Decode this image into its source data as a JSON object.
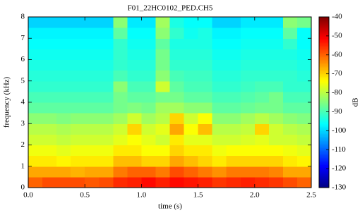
{
  "chart_data": {
    "type": "heatmap",
    "title": "F01_22HC0102_PED.CH5",
    "xlabel": "time (s)",
    "ylabel": "frequency (kHz)",
    "colorbar_label": "dB",
    "colormap": "jet",
    "x": [
      0.0625,
      0.1875,
      0.3125,
      0.4375,
      0.5625,
      0.6875,
      0.8125,
      0.9375,
      1.0625,
      1.1875,
      1.3125,
      1.4375,
      1.5625,
      1.6875,
      1.8125,
      1.9375,
      2.0625,
      2.1875,
      2.3125,
      2.4375
    ],
    "y": [
      0.25,
      0.75,
      1.25,
      1.75,
      2.25,
      2.75,
      3.25,
      3.75,
      4.25,
      4.75,
      5.25,
      5.75,
      6.25,
      6.75,
      7.25,
      7.75
    ],
    "z": [
      [
        -60,
        -58,
        -58,
        -58,
        -59,
        -58,
        -55,
        -54,
        -52,
        -54,
        -52,
        -53,
        -54,
        -56,
        -55,
        -54,
        -55,
        -56,
        -58,
        -60
      ],
      [
        -66,
        -66,
        -66,
        -67,
        -66,
        -66,
        -62,
        -60,
        -60,
        -62,
        -58,
        -60,
        -62,
        -64,
        -62,
        -62,
        -62,
        -63,
        -66,
        -66
      ],
      [
        -72,
        -72,
        -73,
        -72,
        -72,
        -72,
        -68,
        -68,
        -70,
        -70,
        -66,
        -68,
        -70,
        -72,
        -70,
        -70,
        -70,
        -70,
        -72,
        -73
      ],
      [
        -75,
        -75,
        -76,
        -75,
        -75,
        -75,
        -72,
        -72,
        -74,
        -74,
        -70,
        -72,
        -72,
        -75,
        -74,
        -74,
        -74,
        -74,
        -75,
        -76
      ],
      [
        -78,
        -78,
        -79,
        -78,
        -78,
        -78,
        -76,
        -74,
        -76,
        -78,
        -72,
        -76,
        -76,
        -78,
        -78,
        -77,
        -76,
        -78,
        -78,
        -79
      ],
      [
        -80,
        -80,
        -81,
        -80,
        -80,
        -80,
        -78,
        -70,
        -78,
        -76,
        -66,
        -74,
        -68,
        -80,
        -80,
        -79,
        -70,
        -78,
        -80,
        -81
      ],
      [
        -84,
        -84,
        -85,
        -84,
        -84,
        -84,
        -82,
        -78,
        -82,
        -80,
        -70,
        -78,
        -74,
        -84,
        -84,
        -82,
        -80,
        -82,
        -84,
        -85
      ],
      [
        -88,
        -88,
        -88,
        -88,
        -88,
        -88,
        -86,
        -85,
        -86,
        -82,
        -82,
        -84,
        -84,
        -88,
        -88,
        -87,
        -86,
        -86,
        -88,
        -88
      ],
      [
        -90,
        -90,
        -90,
        -90,
        -90,
        -90,
        -86,
        -88,
        -88,
        -86,
        -86,
        -88,
        -88,
        -90,
        -90,
        -89,
        -88,
        -86,
        -90,
        -90
      ],
      [
        -92,
        -92,
        -92,
        -92,
        -92,
        -92,
        -84,
        -90,
        -90,
        -78,
        -88,
        -90,
        -90,
        -92,
        -92,
        -91,
        -90,
        -90,
        -92,
        -92
      ],
      [
        -93,
        -93,
        -93,
        -93,
        -93,
        -93,
        -90,
        -92,
        -92,
        -84,
        -90,
        -91,
        -91,
        -93,
        -93,
        -92,
        -92,
        -92,
        -92,
        -93
      ],
      [
        -94,
        -94,
        -94,
        -94,
        -94,
        -94,
        -92,
        -93,
        -93,
        -86,
        -92,
        -92,
        -92,
        -94,
        -94,
        -93,
        -93,
        -93,
        -93,
        -94
      ],
      [
        -95,
        -95,
        -95,
        -95,
        -95,
        -95,
        -92,
        -94,
        -94,
        -86,
        -93,
        -93,
        -93,
        -95,
        -95,
        -94,
        -94,
        -94,
        -94,
        -95
      ],
      [
        -96,
        -96,
        -96,
        -96,
        -96,
        -96,
        -92,
        -95,
        -95,
        -88,
        -94,
        -94,
        -94,
        -96,
        -96,
        -95,
        -95,
        -95,
        -92,
        -96
      ],
      [
        -97,
        -97,
        -97,
        -97,
        -97,
        -97,
        -88,
        -96,
        -96,
        -84,
        -92,
        -95,
        -94,
        -97,
        -97,
        -96,
        -96,
        -96,
        -88,
        -96
      ],
      [
        -100,
        -100,
        -100,
        -100,
        -100,
        -100,
        -84,
        -98,
        -98,
        -82,
        -94,
        -96,
        -96,
        -100,
        -100,
        -98,
        -98,
        -98,
        -84,
        -86
      ]
    ],
    "xlim": [
      0,
      2.5
    ],
    "ylim": [
      0,
      8
    ],
    "xticks": [
      {
        "value": 0,
        "label": "0.0"
      },
      0.5,
      {
        "value": 1,
        "label": "1.0"
      },
      1.5,
      {
        "value": 2,
        "label": "2.0"
      },
      2.5
    ],
    "yticks": [
      0,
      1,
      2,
      3,
      4,
      5,
      6,
      7,
      8
    ],
    "clim": [
      -130,
      -40
    ],
    "cticks": [
      -130,
      -120,
      -110,
      -100,
      -90,
      -80,
      -70,
      -60,
      -50,
      -40
    ]
  }
}
